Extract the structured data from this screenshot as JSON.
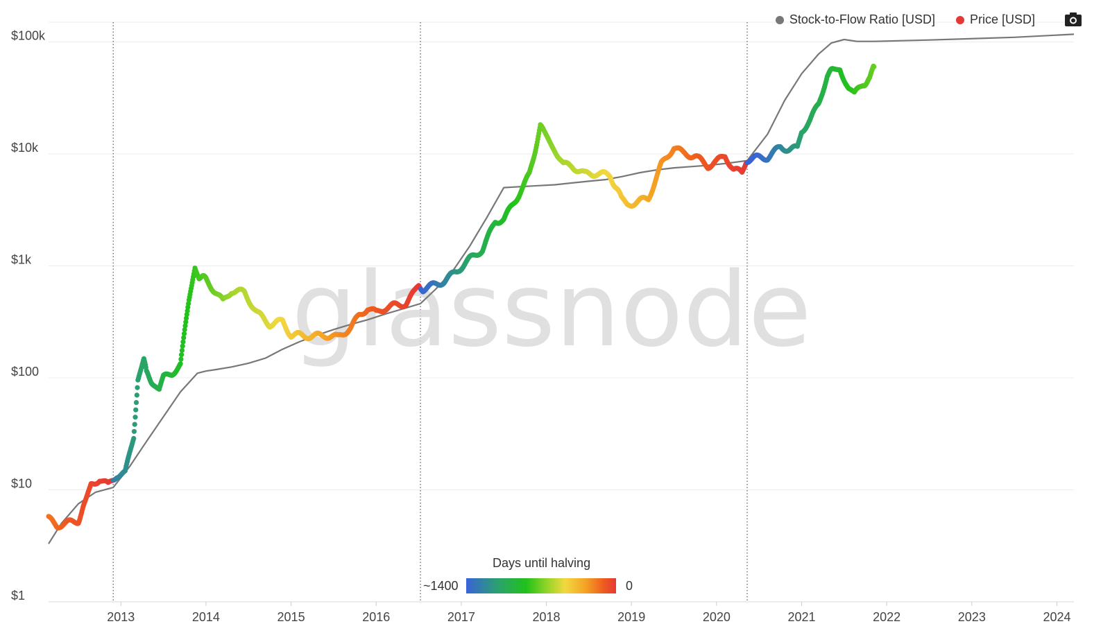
{
  "legend": {
    "items": [
      {
        "label": "Stock-to-Flow Ratio [USD]",
        "color": "#777777"
      },
      {
        "label": "Price [USD]",
        "color": "#e53935"
      }
    ]
  },
  "toolbar": {
    "camera_icon": "camera-icon"
  },
  "watermark": "glassnode",
  "colorbar": {
    "title": "Days until halving",
    "min_label": "~1400",
    "max_label": "0",
    "colors": [
      "#3a63d8",
      "#2aa36a",
      "#21c21a",
      "#a4d62c",
      "#f2d840",
      "#f4a124",
      "#ee5a1f",
      "#e53935"
    ]
  },
  "chart_data": {
    "type": "scatter",
    "xlim": [
      2012.15,
      2024.2
    ],
    "ylim": [
      1,
      150000
    ],
    "yscale": "log",
    "grid": "horizontal",
    "legend_position": "top-right",
    "x_ticks": [
      {
        "value": 2013,
        "label": "2013"
      },
      {
        "value": 2014,
        "label": "2014"
      },
      {
        "value": 2015,
        "label": "2015"
      },
      {
        "value": 2016,
        "label": "2016"
      },
      {
        "value": 2017,
        "label": "2017"
      },
      {
        "value": 2018,
        "label": "2018"
      },
      {
        "value": 2019,
        "label": "2019"
      },
      {
        "value": 2020,
        "label": "2020"
      },
      {
        "value": 2021,
        "label": "2021"
      },
      {
        "value": 2022,
        "label": "2022"
      },
      {
        "value": 2023,
        "label": "2023"
      },
      {
        "value": 2024,
        "label": "2024"
      }
    ],
    "y_ticks": [
      {
        "value": 1,
        "label": "$1"
      },
      {
        "value": 10,
        "label": "$10"
      },
      {
        "value": 100,
        "label": "$100"
      },
      {
        "value": 1000,
        "label": "$1k"
      },
      {
        "value": 10000,
        "label": "$10k"
      },
      {
        "value": 100000,
        "label": "$100k"
      }
    ],
    "halvings": [
      2012.91,
      2016.52,
      2020.36
    ],
    "series": [
      {
        "name": "Stock-to-Flow Ratio [USD]",
        "kind": "line",
        "color": "#777777",
        "x": [
          2012.15,
          2012.3,
          2012.5,
          2012.7,
          2012.91,
          2013.1,
          2013.3,
          2013.5,
          2013.7,
          2013.9,
          2014.0,
          2014.1,
          2014.3,
          2014.5,
          2014.7,
          2014.9,
          2015.1,
          2015.3,
          2015.5,
          2015.7,
          2015.9,
          2016.1,
          2016.3,
          2016.52,
          2016.7,
          2016.9,
          2017.1,
          2017.3,
          2017.5,
          2017.7,
          2017.9,
          2018.1,
          2018.3,
          2018.5,
          2018.7,
          2018.9,
          2019.1,
          2019.3,
          2019.5,
          2019.7,
          2019.9,
          2020.1,
          2020.36,
          2020.6,
          2020.8,
          2021.0,
          2021.2,
          2021.35,
          2021.5,
          2021.65,
          2021.85,
          2022.5,
          2023.5,
          2024.2
        ],
        "y": [
          3.3,
          5,
          7.5,
          9.5,
          10.5,
          16,
          27,
          45,
          75,
          110,
          115,
          118,
          125,
          135,
          150,
          180,
          210,
          240,
          270,
          300,
          330,
          370,
          410,
          460,
          620,
          900,
          1500,
          2700,
          5000,
          5100,
          5200,
          5300,
          5500,
          5700,
          5900,
          6300,
          6800,
          7200,
          7500,
          7700,
          7900,
          8200,
          8700,
          15000,
          30000,
          52000,
          78000,
          98000,
          105000,
          101000,
          101000,
          104000,
          110000,
          117000
        ]
      },
      {
        "name": "Price [USD]",
        "kind": "scatter",
        "color_by": "days_until_halving",
        "x": [
          2012.15,
          2012.25,
          2012.4,
          2012.5,
          2012.58,
          2012.65,
          2012.75,
          2012.85,
          2012.95,
          2013.05,
          2013.15,
          2013.2,
          2013.27,
          2013.3,
          2013.38,
          2013.45,
          2013.5,
          2013.6,
          2013.7,
          2013.8,
          2013.87,
          2013.92,
          2014.0,
          2014.1,
          2014.2,
          2014.3,
          2014.45,
          2014.6,
          2014.75,
          2014.9,
          2015.0,
          2015.1,
          2015.25,
          2015.4,
          2015.55,
          2015.7,
          2015.8,
          2015.9,
          2016.0,
          2016.1,
          2016.2,
          2016.35,
          2016.45,
          2016.5,
          2016.55,
          2016.65,
          2016.8,
          2016.95,
          2017.1,
          2017.25,
          2017.4,
          2017.5,
          2017.65,
          2017.8,
          2017.93,
          2017.98,
          2018.1,
          2018.2,
          2018.3,
          2018.45,
          2018.6,
          2018.75,
          2018.88,
          2018.95,
          2019.1,
          2019.2,
          2019.35,
          2019.5,
          2019.6,
          2019.75,
          2019.9,
          2020.0,
          2020.1,
          2020.2,
          2020.3,
          2020.35,
          2020.45,
          2020.6,
          2020.75,
          2020.85,
          2020.95,
          2021.0,
          2021.1,
          2021.2,
          2021.3,
          2021.38,
          2021.45,
          2021.55,
          2021.62,
          2021.72,
          2021.8,
          2021.85
        ],
        "y": [
          5.5,
          4.8,
          5.1,
          5.3,
          7.5,
          11,
          12.5,
          11,
          13.5,
          14,
          30,
          100,
          150,
          110,
          90,
          80,
          100,
          110,
          130,
          500,
          1000,
          800,
          760,
          600,
          480,
          600,
          580,
          380,
          300,
          320,
          240,
          240,
          235,
          240,
          230,
          280,
          360,
          420,
          380,
          420,
          440,
          460,
          580,
          680,
          620,
          660,
          730,
          900,
          1150,
          1400,
          2500,
          2600,
          4000,
          6500,
          17500,
          15000,
          11000,
          8000,
          7800,
          6600,
          6700,
          6400,
          4000,
          3500,
          3800,
          4000,
          8000,
          11500,
          10200,
          9500,
          7800,
          8500,
          9700,
          7200,
          6800,
          8800,
          9200,
          9300,
          11500,
          11000,
          11200,
          16000,
          20000,
          28000,
          50000,
          57000,
          58000,
          38000,
          34000,
          42000,
          46000,
          60000
        ]
      }
    ]
  }
}
